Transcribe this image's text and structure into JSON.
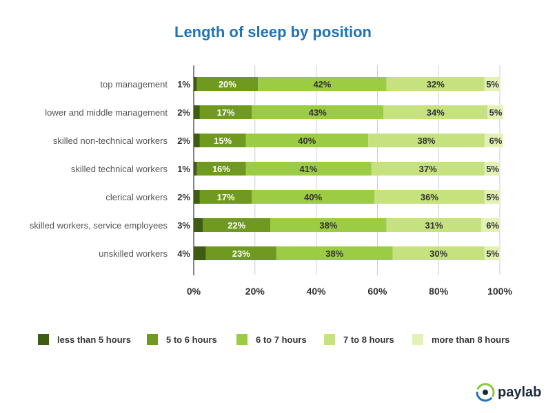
{
  "title": "Length of sleep by position",
  "brand": "paylab",
  "colors": [
    "#3e5c12",
    "#6f9a1f",
    "#9ccb44",
    "#c5e27e",
    "#e2f2b4"
  ],
  "text_colors": [
    "#333333",
    "#ffffff",
    "#333333",
    "#333333",
    "#333333"
  ],
  "chart_data": {
    "type": "bar",
    "orientation": "horizontal",
    "stacked": true,
    "title": "Length of sleep by position",
    "categories": [
      "top management",
      "lower and middle management",
      "skilled non-technical workers",
      "skilled technical workers",
      "clerical workers",
      "skilled workers, service employees",
      "unskilled workers"
    ],
    "series": [
      {
        "name": "less than 5 hours",
        "values": [
          1,
          2,
          2,
          1,
          2,
          3,
          4
        ]
      },
      {
        "name": "5 to 6 hours",
        "values": [
          20,
          17,
          15,
          16,
          17,
          22,
          23
        ]
      },
      {
        "name": "6 to 7 hours",
        "values": [
          42,
          43,
          40,
          41,
          40,
          38,
          38
        ]
      },
      {
        "name": "7 to 8 hours",
        "values": [
          32,
          34,
          38,
          37,
          36,
          31,
          30
        ]
      },
      {
        "name": "more than 8 hours",
        "values": [
          5,
          5,
          6,
          5,
          5,
          6,
          5
        ]
      }
    ],
    "xlim": [
      0,
      100
    ],
    "xticks": [
      "0%",
      "20%",
      "40%",
      "60%",
      "80%",
      "100%"
    ],
    "grid": true,
    "legend": "bottom"
  }
}
